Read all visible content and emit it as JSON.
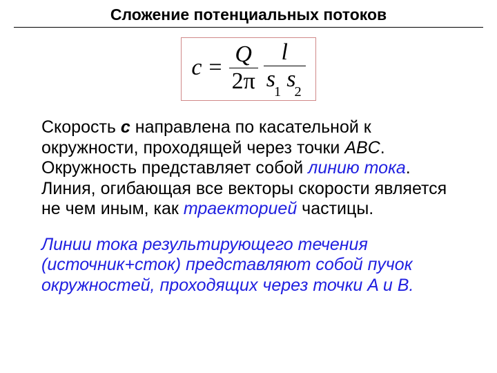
{
  "title": "Сложение потенциальных потоков",
  "formula": {
    "lhs": "c",
    "frac1": {
      "num": "Q",
      "den_const": "2",
      "den_pi": "π"
    },
    "frac2": {
      "num": "l",
      "den_s1": "s",
      "den_s1_sub": "1",
      "den_s2": "s",
      "den_s2_sub": "2"
    },
    "border_color": "#d08888"
  },
  "para1": {
    "t1": "Скорость ",
    "c": "с",
    "t2": " направлена по касательной к окружности, проходящей через точки ",
    "abc": "ABC",
    "t3": ". Окружность представляет собой ",
    "stream_line": "линию тока",
    "t4": ". Линия, огибающая все векторы скорости является не чем иным, как ",
    "trajectory": "траекторией",
    "t5": " частицы."
  },
  "para2": "Линии тока результирующего течения (источник+сток) представляют собой пучок окружностей, проходящих через точки A и B.",
  "colors": {
    "text": "#000000",
    "accent": "#2020e0",
    "background": "#ffffff"
  },
  "typography": {
    "title_fontsize": 23,
    "body_fontsize": 25,
    "formula_fontsize": 34
  }
}
